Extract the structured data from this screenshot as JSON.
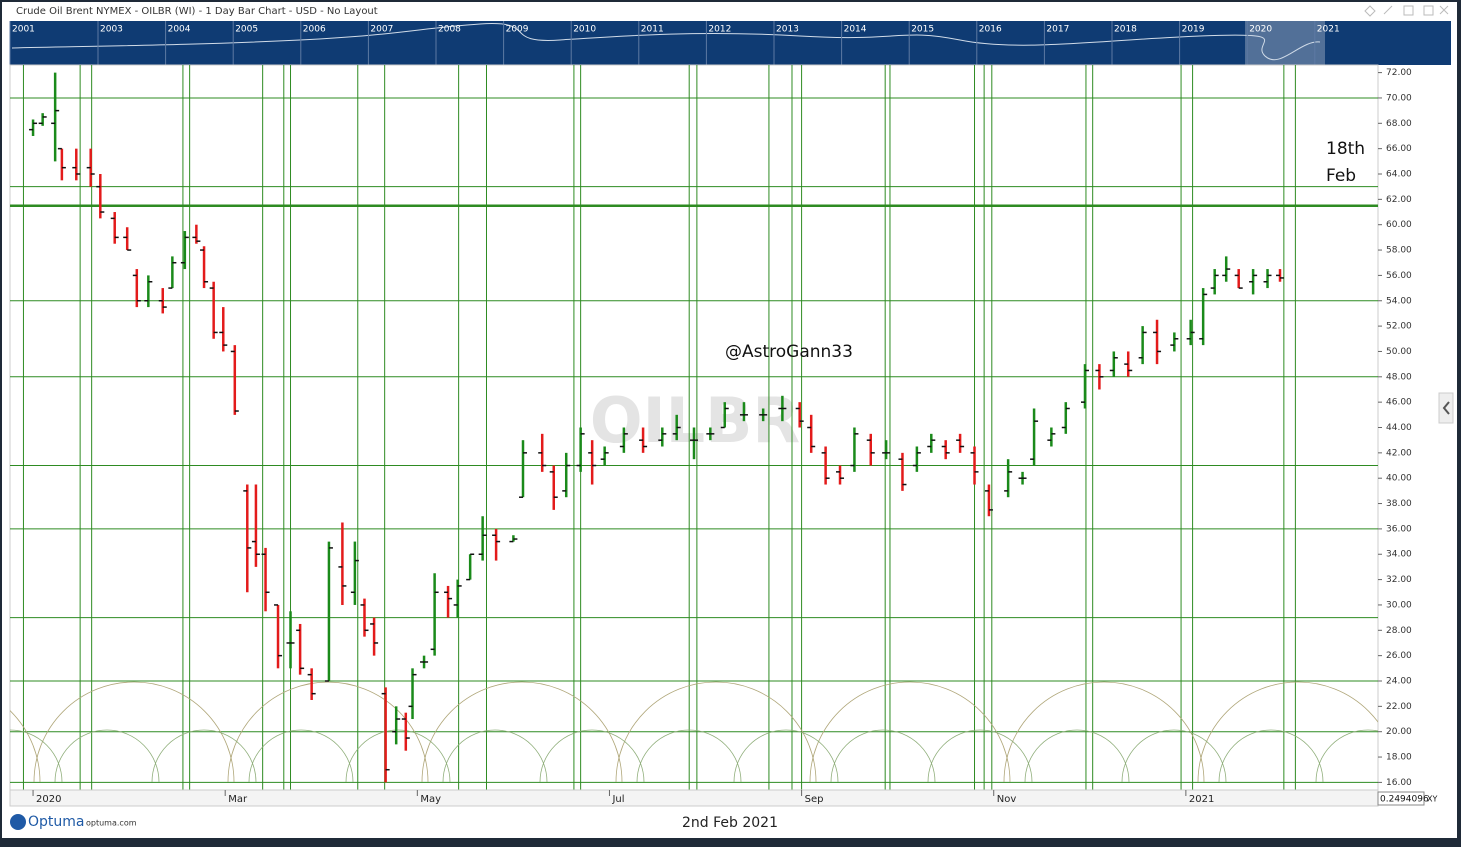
{
  "chart_data": {
    "type": "ohlc",
    "title": "Crude Oil Brent NYMEX - OILBR (WI) - 1 Day Bar Chart - USD - No Layout",
    "watermark": "OILBR",
    "annotations": [
      "@AstroGann33",
      "18th",
      "Feb"
    ],
    "footer_date": "2nd Feb 2021",
    "brand": "Optuma",
    "brand_url": "optuma.com",
    "cursor_value": "0.2494096",
    "cursor_mode": "XY",
    "overview_years": [
      "2001",
      "2003",
      "2004",
      "2005",
      "2006",
      "2007",
      "2008",
      "2009",
      "2010",
      "2011",
      "2012",
      "2013",
      "2014",
      "2015",
      "2016",
      "2017",
      "2018",
      "2019",
      "2020",
      "2021"
    ],
    "up_color": "#1a8a1a",
    "down_color": "#e31b1b",
    "line_color": "#2e8b22",
    "xlim": [
      -0.24,
      14.0
    ],
    "ylim": [
      15.4,
      72.6
    ],
    "xticks": [
      {
        "value": 0,
        "label": "2020"
      },
      {
        "value": 2,
        "label": "Mar"
      },
      {
        "value": 4,
        "label": "May"
      },
      {
        "value": 6,
        "label": "Jul"
      },
      {
        "value": 8,
        "label": "Sep"
      },
      {
        "value": 10,
        "label": "Nov"
      },
      {
        "value": 12,
        "label": "2021"
      }
    ],
    "yticks": [
      {
        "value": 16,
        "label": "16.00"
      },
      {
        "value": 18,
        "label": "18.00"
      },
      {
        "value": 20,
        "label": "20.00"
      },
      {
        "value": 22,
        "label": "22.00"
      },
      {
        "value": 24,
        "label": "24.00"
      },
      {
        "value": 26,
        "label": "26.00"
      },
      {
        "value": 28,
        "label": "28.00"
      },
      {
        "value": 30,
        "label": "30.00"
      },
      {
        "value": 32,
        "label": "32.00"
      },
      {
        "value": 34,
        "label": "34.00"
      },
      {
        "value": 36,
        "label": "36.00"
      },
      {
        "value": 38,
        "label": "38.00"
      },
      {
        "value": 40,
        "label": "40.00"
      },
      {
        "value": 42,
        "label": "42.00"
      },
      {
        "value": 44,
        "label": "44.00"
      },
      {
        "value": 46,
        "label": "46.00"
      },
      {
        "value": 48,
        "label": "48.00"
      },
      {
        "value": 50,
        "label": "50.00"
      },
      {
        "value": 52,
        "label": "52.00"
      },
      {
        "value": 54,
        "label": "54.00"
      },
      {
        "value": 56,
        "label": "56.00"
      },
      {
        "value": 58,
        "label": "58.00"
      },
      {
        "value": 60,
        "label": "60.00"
      },
      {
        "value": 62,
        "label": "62.00"
      },
      {
        "value": 64,
        "label": "64.00"
      },
      {
        "value": 66,
        "label": "66.00"
      },
      {
        "value": 68,
        "label": "68.00"
      },
      {
        "value": 70,
        "label": "70.00"
      },
      {
        "value": 72,
        "label": "72.00"
      }
    ],
    "hlines": [
      70,
      63,
      54,
      48,
      41,
      36,
      29,
      24,
      20,
      16
    ],
    "major_hline": 61.5,
    "vlines": [
      -0.1,
      0.49,
      0.61,
      1.56,
      1.63,
      2.39,
      2.61,
      2.68,
      3.38,
      3.66,
      4.43,
      4.72,
      5.63,
      5.7,
      6.83,
      6.91,
      7.66,
      7.9,
      8.0,
      8.87,
      8.92,
      9.8,
      9.9,
      9.98,
      10.96,
      11.03,
      11.95,
      12.07,
      13.02,
      13.14
    ],
    "x": [
      0,
      0.1,
      0.23,
      0.3,
      0.45,
      0.6,
      0.7,
      0.85,
      0.98,
      1.08,
      1.2,
      1.35,
      1.45,
      1.58,
      1.7,
      1.78,
      1.88,
      1.98,
      2.1,
      2.23,
      2.32,
      2.42,
      2.55,
      2.68,
      2.78,
      2.9,
      3.08,
      3.22,
      3.35,
      3.45,
      3.55,
      3.67,
      3.78,
      3.88,
      3.95,
      4.07,
      4.18,
      4.32,
      4.42,
      4.55,
      4.68,
      4.82,
      5.0,
      5.1,
      5.3,
      5.42,
      5.55,
      5.7,
      5.82,
      5.95,
      6.15,
      6.35,
      6.55,
      6.7,
      6.88,
      7.05,
      7.2,
      7.4,
      7.6,
      7.8,
      7.98,
      8.1,
      8.25,
      8.4,
      8.55,
      8.72,
      8.88,
      9.05,
      9.2,
      9.35,
      9.5,
      9.65,
      9.8,
      9.95,
      10.15,
      10.3,
      10.42,
      10.6,
      10.75,
      10.95,
      11.1,
      11.25,
      11.4,
      11.55,
      11.7,
      11.88,
      12.05,
      12.18,
      12.3,
      12.42,
      12.55,
      12.7,
      12.85,
      12.98
    ],
    "open": [
      67.5,
      68,
      68,
      66,
      64.5,
      64.5,
      63,
      60.5,
      59,
      56,
      54,
      54,
      55,
      57,
      59,
      58,
      55,
      51.5,
      50,
      39,
      35,
      34,
      30,
      27,
      28,
      24.5,
      24,
      33,
      31,
      30,
      28.5,
      23,
      20,
      21,
      22,
      25.5,
      26.5,
      31,
      30,
      32,
      34,
      35.5,
      35,
      38.5,
      42,
      40.5,
      39,
      41,
      42,
      41.5,
      42.5,
      43,
      43,
      43.5,
      43,
      43.5,
      44,
      45,
      45,
      45.5,
      45.5,
      44,
      42,
      40.5,
      41,
      43,
      42,
      41.5,
      41,
      42.5,
      42.5,
      43,
      42,
      39,
      39,
      40,
      41.5,
      43,
      44,
      46,
      48.5,
      48.5,
      49,
      49.5,
      51.5,
      50.5,
      51,
      51,
      55,
      56,
      56,
      55.5,
      55.5,
      56
    ],
    "high": [
      68.3,
      68.8,
      72,
      66,
      66,
      66,
      64,
      61,
      59.8,
      56.5,
      56,
      55,
      57.5,
      59.5,
      60,
      58.3,
      55.5,
      53.5,
      50.5,
      39.5,
      39.5,
      34.5,
      30,
      29.5,
      28.5,
      25,
      35,
      36.5,
      35,
      30.5,
      29,
      23.5,
      22,
      21.5,
      25,
      26,
      32.5,
      31.5,
      32,
      34,
      37,
      36,
      35.5,
      43,
      43.5,
      41,
      42,
      44,
      43,
      42.5,
      44,
      44,
      44,
      45,
      44,
      44,
      46,
      46,
      45.5,
      46.5,
      46,
      45,
      42.5,
      41,
      44,
      43.5,
      43,
      42,
      42.5,
      43.5,
      43,
      43.5,
      42.5,
      39.5,
      41.5,
      40.5,
      45.5,
      44,
      46,
      49,
      49,
      50,
      50,
      52,
      52.5,
      51.5,
      52.5,
      55,
      56.5,
      57.5,
      56.5,
      56.5,
      56.5,
      56.5
    ],
    "low": [
      67,
      67.8,
      65,
      63.5,
      63.5,
      63,
      60.5,
      58.5,
      58,
      53.5,
      53.5,
      53,
      55,
      56.5,
      58.5,
      55,
      51,
      50,
      45,
      31,
      33,
      29.5,
      25,
      25,
      24.5,
      22.5,
      24,
      30,
      30,
      27.5,
      26,
      16,
      19,
      18.5,
      21,
      25,
      26,
      29,
      29,
      32,
      33.5,
      33.5,
      35,
      38.5,
      40.5,
      37.5,
      38.5,
      40.5,
      39.5,
      41,
      42,
      42,
      42.5,
      43,
      41.5,
      43,
      44,
      44.5,
      44.5,
      44.5,
      44,
      42,
      39.5,
      39.5,
      40.5,
      41,
      41.5,
      39,
      40.5,
      42,
      41.5,
      42,
      39.5,
      37,
      38.5,
      39.5,
      41,
      42.5,
      43.5,
      45.5,
      47,
      48,
      48,
      49,
      49,
      50,
      50.5,
      50.5,
      54.5,
      55.5,
      55,
      54.5,
      55,
      55.5
    ],
    "close": [
      68,
      68.5,
      69,
      64.5,
      64,
      64,
      61,
      59,
      58,
      54,
      55.5,
      53.5,
      57,
      59,
      58.7,
      55.5,
      51.5,
      50.5,
      45.3,
      34.5,
      34,
      31,
      26,
      27,
      25,
      23,
      34.5,
      31.5,
      33.5,
      28,
      27,
      17,
      21,
      19.5,
      24.5,
      25.5,
      31,
      30.5,
      31.5,
      34,
      35.5,
      35,
      35.2,
      42,
      41,
      38.5,
      41,
      43.5,
      41,
      42,
      43.5,
      42.5,
      43.5,
      44,
      43,
      43.5,
      45.5,
      45,
      45,
      45.5,
      44.5,
      42.5,
      40,
      40,
      43.5,
      42,
      42,
      39.5,
      42,
      43,
      42,
      42.5,
      40.5,
      37.5,
      40.5,
      40,
      44.5,
      43.5,
      45.5,
      48.5,
      48,
      49.5,
      48.5,
      51.5,
      50,
      51,
      51.5,
      54.5,
      56,
      56.5,
      55,
      56,
      56,
      55.8
    ]
  }
}
